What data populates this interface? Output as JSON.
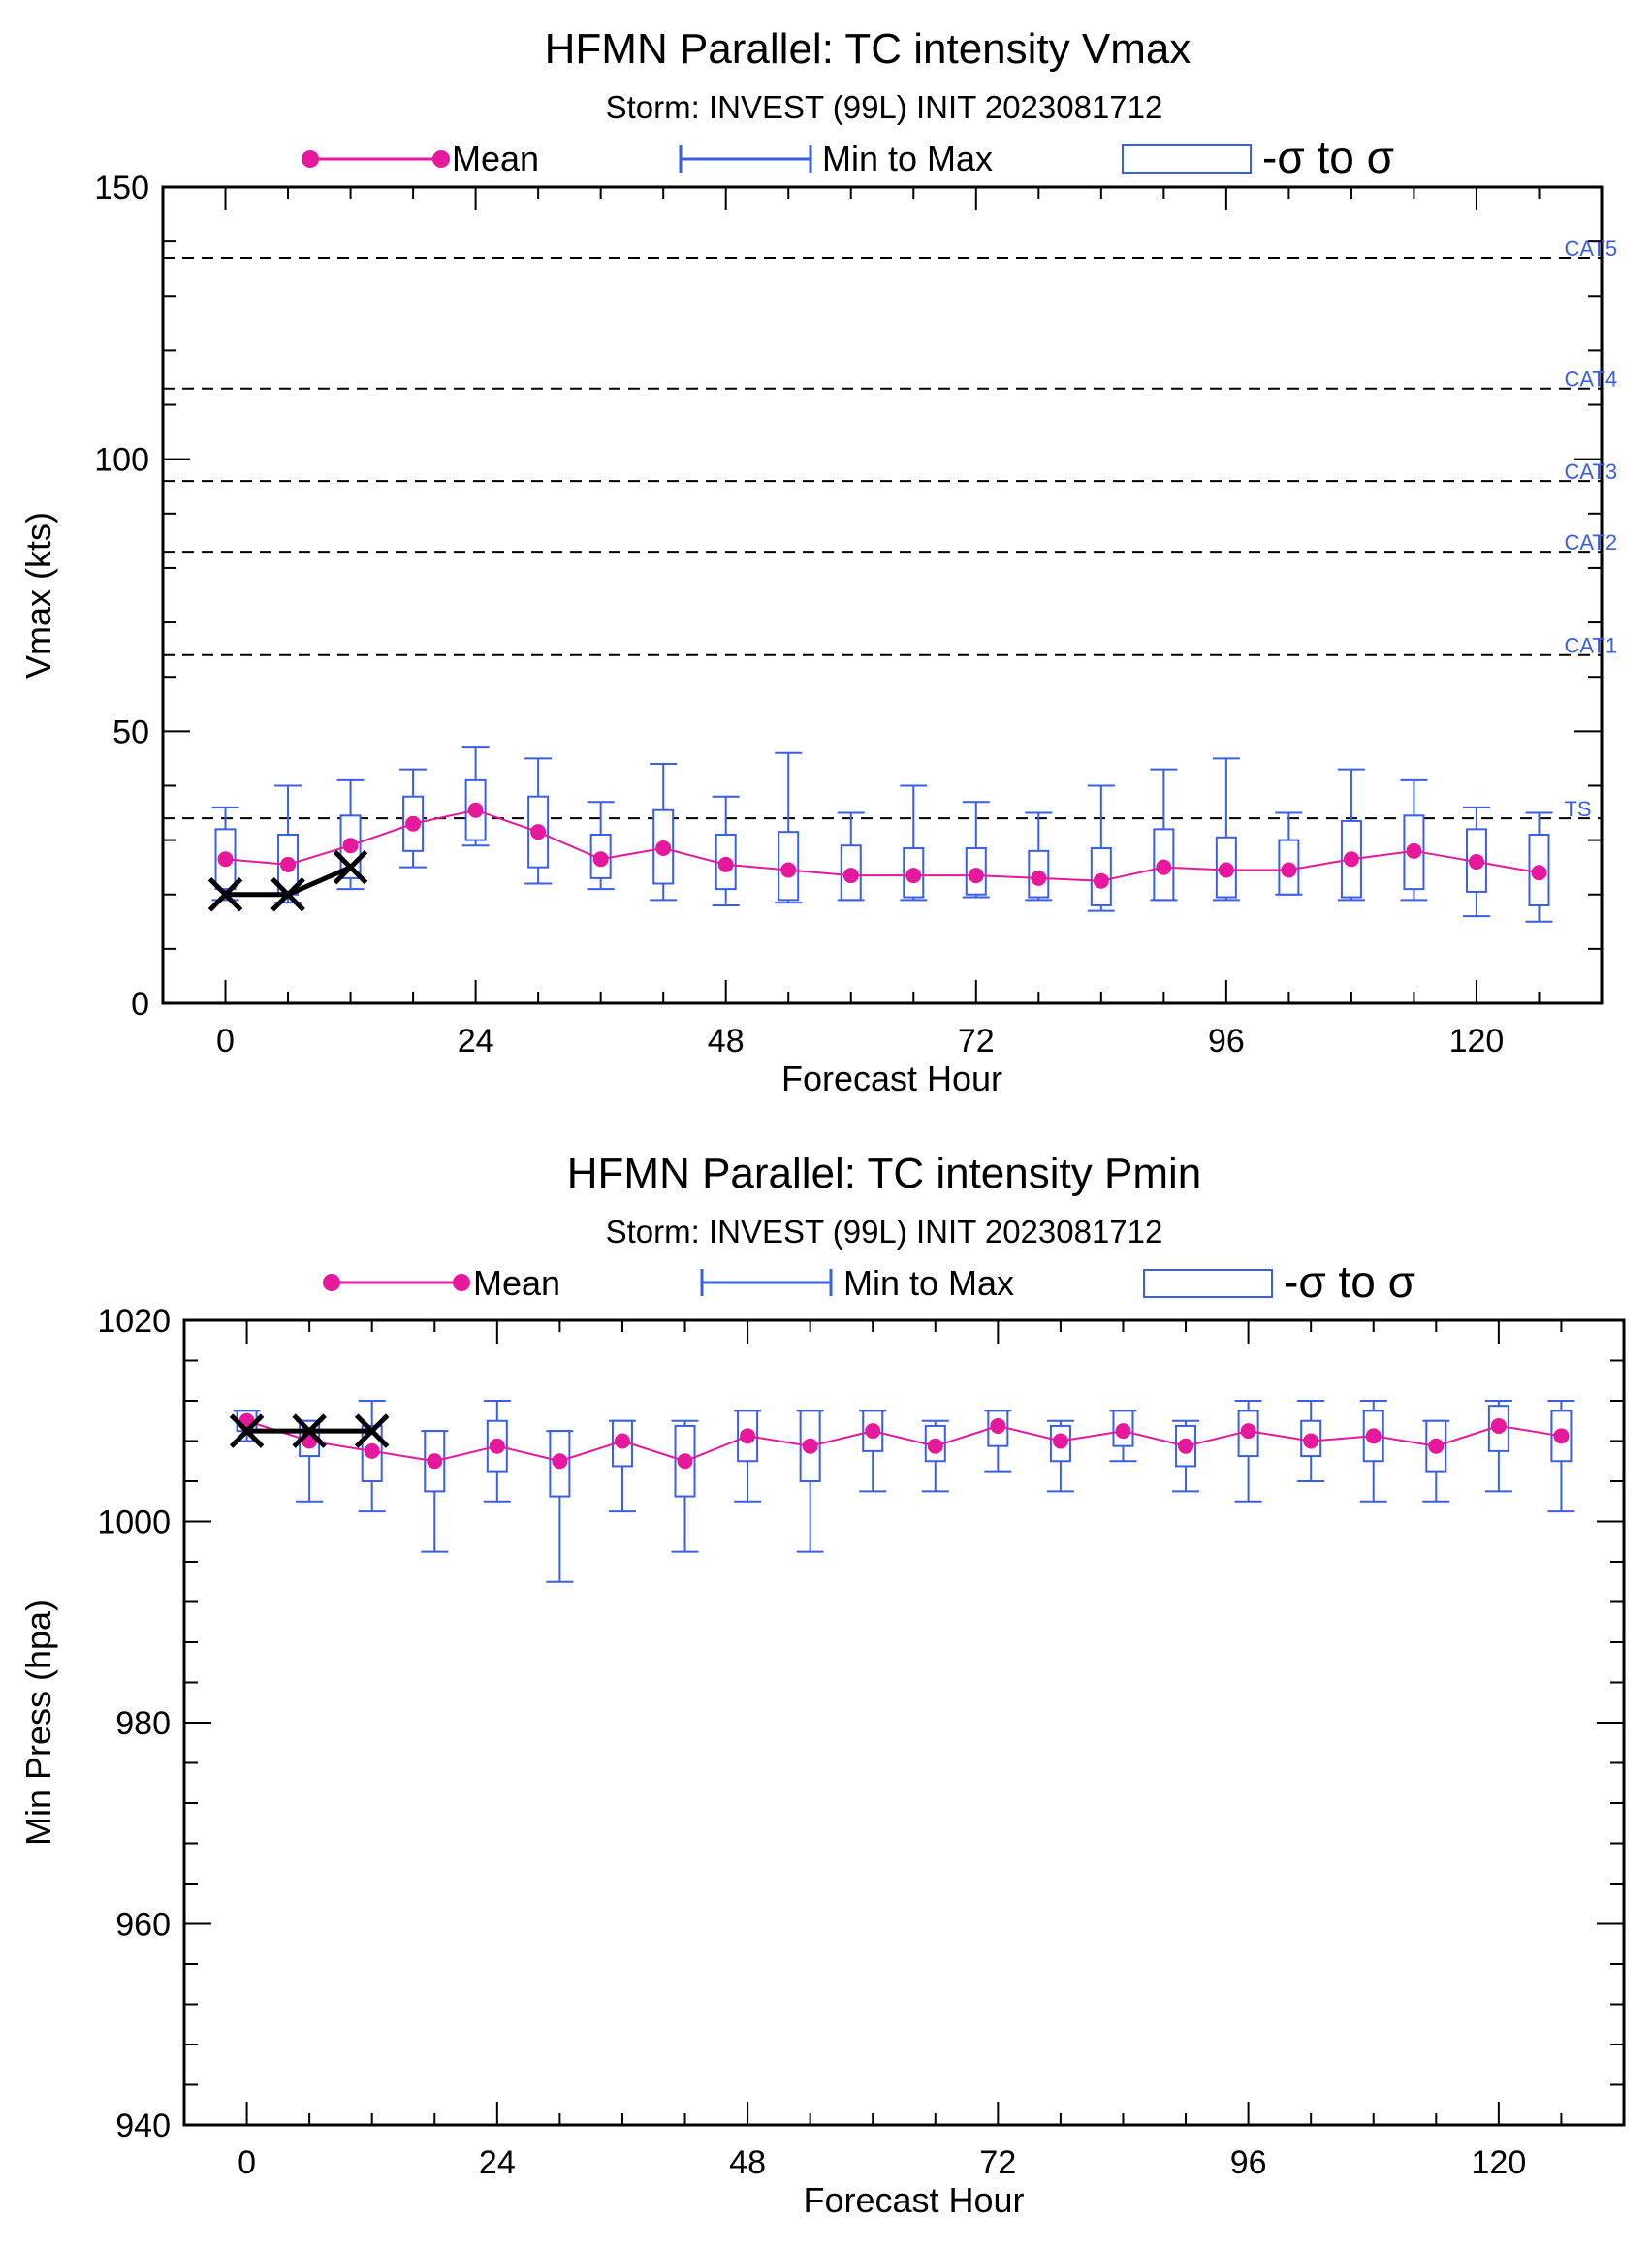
{
  "charts": [
    {
      "title": "HFMN Parallel: TC intensity Vmax",
      "subtitle": "Storm: INVEST (99L) INIT 2023081712",
      "legend": {
        "mean": "Mean",
        "minmax": "Min to Max",
        "sigma": "-σ to σ"
      }
    },
    {
      "title": "HFMN Parallel: TC intensity Pmin",
      "subtitle": "Storm: INVEST (99L) INIT 2023081712",
      "legend": {
        "mean": "Mean",
        "minmax": "Min to Max",
        "sigma": "-σ to σ"
      }
    }
  ],
  "colors": {
    "mean": "#e6189b",
    "box": "#3a5fe6",
    "obs": "#000000",
    "threshold_label": "#3a5fe6"
  },
  "chart_data": [
    {
      "type": "box-line",
      "title": "HFMN Parallel: TC intensity Vmax",
      "subtitle": "Storm: INVEST (99L) INIT 2023081712",
      "xlabel": "Forecast Hour",
      "ylabel": "Vmax (kts)",
      "xlim": [
        -6,
        132
      ],
      "ylim": [
        0,
        150
      ],
      "xticks": [
        0,
        24,
        48,
        72,
        96,
        120
      ],
      "yticks": [
        0,
        50,
        100,
        150
      ],
      "legend_position": "top",
      "x": [
        0,
        6,
        12,
        18,
        24,
        30,
        36,
        42,
        48,
        54,
        60,
        66,
        72,
        78,
        84,
        90,
        96,
        102,
        108,
        114,
        120,
        126
      ],
      "series": [
        {
          "name": "Mean",
          "values": [
            26.5,
            25.5,
            29,
            33,
            35.5,
            31.5,
            26.5,
            28.5,
            25.5,
            24.5,
            23.5,
            23.5,
            23.5,
            23,
            22.5,
            25,
            24.5,
            24.5,
            26.5,
            28,
            26,
            24
          ]
        },
        {
          "name": "Min to Max",
          "min": [
            19,
            18.5,
            21,
            25,
            29,
            22,
            21,
            19,
            18,
            18.5,
            19,
            19,
            19.5,
            19,
            17,
            19,
            19,
            20,
            19,
            19,
            16,
            15
          ],
          "max": [
            36,
            40,
            41,
            43,
            47,
            45,
            37,
            44,
            38,
            46,
            35,
            40,
            37,
            35,
            40,
            43,
            45,
            35,
            43,
            41,
            36,
            35
          ]
        },
        {
          "name": "-σ to σ",
          "low": [
            21,
            20,
            23,
            28,
            30,
            25,
            23,
            22,
            21,
            19,
            19,
            19.5,
            20,
            19.5,
            18,
            19,
            19.5,
            20,
            19.5,
            21,
            20.5,
            18
          ],
          "high": [
            32,
            31,
            34.5,
            38,
            41,
            38,
            31,
            35.5,
            31,
            31.5,
            29,
            28.5,
            28.5,
            28,
            28.5,
            32,
            30.5,
            30,
            33.5,
            34.5,
            32,
            31
          ]
        },
        {
          "name": "Observed",
          "x": [
            0,
            6,
            12
          ],
          "values": [
            20,
            20,
            25
          ]
        }
      ],
      "thresholds": [
        {
          "label": "TS",
          "value": 34
        },
        {
          "label": "CAT1",
          "value": 64
        },
        {
          "label": "CAT2",
          "value": 83
        },
        {
          "label": "CAT3",
          "value": 96
        },
        {
          "label": "CAT4",
          "value": 113
        },
        {
          "label": "CAT5",
          "value": 137
        }
      ],
      "grid": false
    },
    {
      "type": "box-line",
      "title": "HFMN Parallel: TC intensity Pmin",
      "subtitle": "Storm: INVEST (99L) INIT 2023081712",
      "xlabel": "Forecast Hour",
      "ylabel": "Min Press (hpa)",
      "xlim": [
        -6,
        132
      ],
      "ylim": [
        940,
        1020
      ],
      "xticks": [
        0,
        24,
        48,
        72,
        96,
        120
      ],
      "yticks": [
        940,
        960,
        980,
        1000,
        1020
      ],
      "legend_position": "top",
      "x": [
        0,
        6,
        12,
        18,
        24,
        30,
        36,
        42,
        48,
        54,
        60,
        66,
        72,
        78,
        84,
        90,
        96,
        102,
        108,
        114,
        120,
        126
      ],
      "series": [
        {
          "name": "Mean",
          "values": [
            1010,
            1008,
            1007,
            1006,
            1007.5,
            1006,
            1008,
            1006,
            1008.5,
            1007.5,
            1009,
            1007.5,
            1009.5,
            1008,
            1009,
            1007.5,
            1009,
            1008,
            1008.5,
            1007.5,
            1009.5,
            1008.5
          ]
        },
        {
          "name": "Min to Max",
          "min": [
            1008,
            1002,
            1001,
            997,
            1002,
            994,
            1001,
            997,
            1002,
            997,
            1003,
            1003,
            1005,
            1003,
            1006,
            1003,
            1002,
            1004,
            1002,
            1002,
            1003,
            1001
          ],
          "max": [
            1011,
            1010,
            1012,
            1009,
            1012,
            1009,
            1010,
            1010,
            1011,
            1011,
            1011,
            1010,
            1011,
            1010,
            1011,
            1010,
            1012,
            1012,
            1012,
            1010,
            1012,
            1012
          ]
        },
        {
          "name": "-σ to σ",
          "low": [
            1009,
            1006.5,
            1004,
            1003,
            1005,
            1002.5,
            1005.5,
            1002.5,
            1006,
            1004,
            1007,
            1006,
            1007.5,
            1006,
            1007.5,
            1005.5,
            1006.5,
            1006.5,
            1006,
            1005,
            1007,
            1006
          ],
          "high": [
            1011,
            1010,
            1009.5,
            1009,
            1010,
            1009,
            1010,
            1009.5,
            1011,
            1011,
            1011,
            1009.5,
            1011,
            1009.5,
            1011,
            1009.5,
            1011,
            1010,
            1011,
            1010,
            1011.5,
            1011
          ]
        },
        {
          "name": "Observed",
          "x": [
            0,
            6,
            12
          ],
          "values": [
            1009,
            1009,
            1009
          ]
        }
      ],
      "grid": false
    }
  ]
}
